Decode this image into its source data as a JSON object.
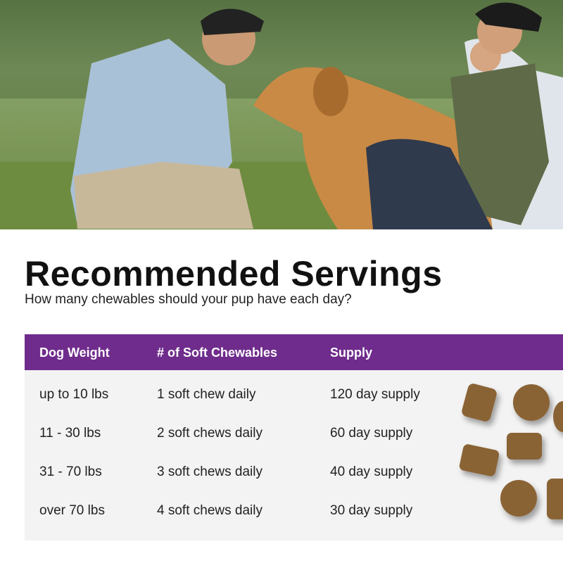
{
  "hero": {
    "alt_description": ""
  },
  "heading": {
    "title": "Recommended Servings",
    "subtitle": "How many chewables should your pup have each day?"
  },
  "table": {
    "header_color": "#6f2c8c",
    "columns": [
      "Dog Weight",
      "# of Soft Chewables",
      "Supply"
    ],
    "rows": [
      [
        "up to 10 lbs",
        "1 soft chew daily",
        "120 day supply"
      ],
      [
        "11 - 30 lbs",
        "2 soft chews daily",
        "60 day supply"
      ],
      [
        "31 - 70 lbs",
        "3 soft chews daily",
        "40 day supply"
      ],
      [
        "over 70 lbs",
        "4 soft chews daily",
        "30 day supply"
      ]
    ]
  }
}
